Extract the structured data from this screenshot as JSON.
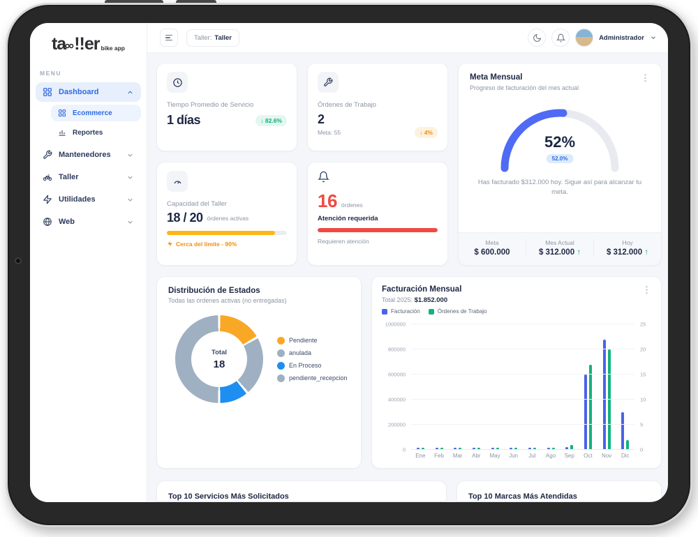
{
  "brand": {
    "part1": "ta",
    "part2": "!!",
    "part3": "er",
    "sub": "bike app"
  },
  "sidebar": {
    "menu_label": "MENU",
    "items": [
      {
        "label": "Dashboard",
        "active": true
      },
      {
        "label": "Ecommerce",
        "active": true
      },
      {
        "label": "Reportes"
      },
      {
        "label": "Mantenedores"
      },
      {
        "label": "Taller"
      },
      {
        "label": "Utilidades"
      },
      {
        "label": "Web"
      }
    ]
  },
  "topbar": {
    "chip_key": "Taller:",
    "chip_value": "Taller",
    "user": "Administrador"
  },
  "icons": {
    "brand_chain": "linked-rings",
    "sidebar": [
      "grid",
      "grid",
      "bar-chart",
      "wrench",
      "bicycle",
      "zap",
      "globe"
    ],
    "topbar": [
      "menu",
      "moon",
      "bell"
    ],
    "kpi": [
      "clock",
      "wrench",
      "speedometer",
      "bell"
    ]
  },
  "colors": {
    "accent_blue": "#2f6ae0",
    "gauge_blue": "#4f6af5",
    "bar_blue": "#4b63e8",
    "green": "#12b27c",
    "yellow": "#fdb614",
    "red": "#f04a42",
    "orange_badge": "#ef8f0e",
    "donut_gray": "#9fb0c2",
    "donut_orange": "#f9a825",
    "donut_blue": "#1f8ef1"
  },
  "cards": {
    "tiempo": {
      "title": "Tiempo Promedio de Servicio",
      "value": "1 días",
      "badge": "↓ 82.6%"
    },
    "ordenes": {
      "title": "Órdenes de Trabajo",
      "value": "2",
      "meta": "Meta: 55",
      "badge": "↓ 4%"
    },
    "capacidad": {
      "title": "Capacidad del Taller",
      "value": "18 / 20",
      "suffix": "órdenes activas",
      "warning": "Cerca del límite - 90%",
      "progress_percent": 90
    },
    "atencion": {
      "value": "16",
      "unit": "órdenes",
      "title": "Atención requerida",
      "note": "Requieren atención",
      "progress_percent": 100
    },
    "meta_mensual": {
      "title": "Meta Mensual",
      "subtitle": "Progreso de facturación del mes actual",
      "percent": "52%",
      "percent_value": 52,
      "badge": "52.0%",
      "message": "Has facturado $312.000 hoy. Sigue así para alcanzar tu meta.",
      "stats": [
        {
          "label": "Meta",
          "value": "$ 600.000",
          "up": false
        },
        {
          "label": "Mes Actual",
          "value": "$ 312.000",
          "up": true
        },
        {
          "label": "Hoy",
          "value": "$ 312.000",
          "up": true
        }
      ]
    },
    "top_servicios": {
      "title": "Top 10 Servicios Más Solicitados"
    },
    "top_marcas": {
      "title": "Top 10 Marcas Más Atendidas"
    }
  },
  "chart_data": [
    {
      "type": "pie",
      "title": "Distribución de Estados",
      "subtitle": "Todas las órdenes activas (no entregadas)",
      "center_label": "Total",
      "total": "18",
      "legend_position": "right",
      "segments": [
        {
          "label": "Pendiente",
          "value": 3,
          "color": "#f9a825"
        },
        {
          "label": "anulada",
          "value": 4,
          "color": "#9fb0c2"
        },
        {
          "label": "En Proceso",
          "value": 2,
          "color": "#1f8ef1"
        },
        {
          "label": "pendiente_recepcion",
          "value": 9,
          "color": "#9fb0c2"
        }
      ]
    },
    {
      "type": "bar",
      "title": "Facturación Mensual",
      "subtitle_prefix": "Total 2025:",
      "subtitle_value": "$1.852.000",
      "categories": [
        "Ene",
        "Feb",
        "Mar",
        "Abr",
        "May",
        "Jun",
        "Jul",
        "Ago",
        "Sep",
        "Oct",
        "Nov",
        "Dic"
      ],
      "series": [
        {
          "name": "Facturación",
          "color": "#4b63e8",
          "axis": "left",
          "values": [
            6500,
            6500,
            6500,
            6500,
            6500,
            6500,
            6500,
            6500,
            20000,
            600000,
            880000,
            300000
          ]
        },
        {
          "name": "Órdenes de Trabajo",
          "color": "#12b27c",
          "axis": "right",
          "values": [
            0,
            0,
            0,
            0,
            0,
            0,
            0,
            0,
            1,
            17,
            20,
            2
          ]
        }
      ],
      "left_axis": {
        "ticks": [
          "0",
          "200000",
          "400000",
          "600000",
          "800000",
          "1000000"
        ],
        "max": 1000000
      },
      "right_axis": {
        "ticks": [
          "0",
          "5",
          "10",
          "15",
          "20",
          "25"
        ],
        "max": 25
      },
      "grid": true,
      "legend_position": "top"
    }
  ]
}
